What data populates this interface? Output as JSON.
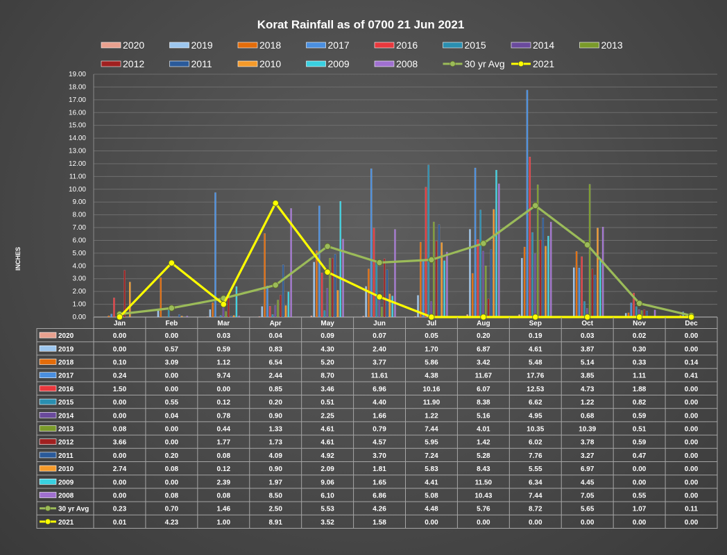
{
  "chart_data": {
    "type": "bar",
    "title": "Korat Rainfall as of 0700 21 Jun 2021",
    "ylabel": "INCHES",
    "ylim": [
      0,
      19
    ],
    "ytick_step": 1,
    "yticks": [
      "0.00",
      "1.00",
      "2.00",
      "3.00",
      "4.00",
      "5.00",
      "6.00",
      "7.00",
      "8.00",
      "9.00",
      "10.00",
      "11.00",
      "12.00",
      "13.00",
      "14.00",
      "15.00",
      "16.00",
      "17.00",
      "18.00",
      "19.00"
    ],
    "grid": true,
    "legend_position": "top",
    "categories": [
      "Jan",
      "Feb",
      "Mar",
      "Apr",
      "May",
      "Jun",
      "Jul",
      "Aug",
      "Sep",
      "Oct",
      "Nov",
      "Dec"
    ],
    "series": [
      {
        "name": "2020",
        "kind": "bar",
        "color": "#e8a08e",
        "values": [
          0.0,
          0.0,
          0.03,
          0.04,
          0.09,
          0.07,
          0.05,
          0.2,
          0.19,
          0.03,
          0.02,
          0.0
        ],
        "labels": [
          "0.00",
          "0.00",
          "0.03",
          "0.04",
          "0.09",
          "0.07",
          "0.05",
          "0.20",
          "0.19",
          "0.03",
          "0.02",
          "0.00"
        ]
      },
      {
        "name": "2019",
        "kind": "bar",
        "color": "#9cc6ee",
        "values": [
          0.0,
          0.57,
          0.59,
          0.83,
          4.3,
          2.4,
          1.7,
          6.87,
          4.61,
          3.87,
          0.3,
          0.0
        ],
        "labels": [
          "0.00",
          "0.57",
          "0.59",
          "0.83",
          "4.30",
          "2.40",
          "1.70",
          "6.87",
          "4.61",
          "3.87",
          "0.30",
          "0.00"
        ]
      },
      {
        "name": "2018",
        "kind": "bar",
        "color": "#e36c0a",
        "values": [
          0.1,
          3.09,
          1.12,
          6.54,
          5.2,
          3.77,
          5.86,
          3.42,
          5.48,
          5.14,
          0.33,
          0.14
        ],
        "labels": [
          "0.10",
          "3.09",
          "1.12",
          "6.54",
          "5.20",
          "3.77",
          "5.86",
          "3.42",
          "5.48",
          "5.14",
          "0.33",
          "0.14"
        ]
      },
      {
        "name": "2017",
        "kind": "bar",
        "color": "#4a8fe0",
        "values": [
          0.24,
          0.0,
          9.74,
          2.44,
          8.7,
          11.61,
          4.38,
          11.67,
          17.76,
          3.85,
          1.11,
          0.41
        ],
        "labels": [
          "0.24",
          "0.00",
          "9.74",
          "2.44",
          "8.70",
          "11.61",
          "4.38",
          "11.67",
          "17.76",
          "3.85",
          "1.11",
          "0.41"
        ]
      },
      {
        "name": "2016",
        "kind": "bar",
        "color": "#e8383d",
        "values": [
          1.5,
          0.0,
          0.0,
          0.85,
          3.46,
          6.96,
          10.16,
          6.07,
          12.53,
          4.73,
          1.88,
          0.0
        ],
        "labels": [
          "1.50",
          "0.00",
          "0.00",
          "0.85",
          "3.46",
          "6.96",
          "10.16",
          "6.07",
          "12.53",
          "4.73",
          "1.88",
          "0.00"
        ]
      },
      {
        "name": "2015",
        "kind": "bar",
        "color": "#2a8fb0",
        "values": [
          0.0,
          0.55,
          0.12,
          0.2,
          0.51,
          4.4,
          11.9,
          8.38,
          6.62,
          1.22,
          0.82,
          0.0
        ],
        "labels": [
          "0.00",
          "0.55",
          "0.12",
          "0.20",
          "0.51",
          "4.40",
          "11.90",
          "8.38",
          "6.62",
          "1.22",
          "0.82",
          "0.00"
        ]
      },
      {
        "name": "2014",
        "kind": "bar",
        "color": "#6a4a9c",
        "values": [
          0.0,
          0.04,
          0.78,
          0.9,
          2.25,
          1.66,
          1.22,
          5.16,
          4.95,
          0.68,
          0.59,
          0.0
        ],
        "labels": [
          "0.00",
          "0.04",
          "0.78",
          "0.90",
          "2.25",
          "1.66",
          "1.22",
          "5.16",
          "4.95",
          "0.68",
          "0.59",
          "0.00"
        ]
      },
      {
        "name": "2013",
        "kind": "bar",
        "color": "#7a9a2a",
        "values": [
          0.08,
          0.0,
          0.44,
          1.33,
          4.61,
          0.79,
          7.44,
          4.01,
          10.35,
          10.39,
          0.51,
          0.0
        ],
        "labels": [
          "0.08",
          "0.00",
          "0.44",
          "1.33",
          "4.61",
          "0.79",
          "7.44",
          "4.01",
          "10.35",
          "10.39",
          "0.51",
          "0.00"
        ]
      },
      {
        "name": "2012",
        "kind": "bar",
        "color": "#a02020",
        "values": [
          3.66,
          0.0,
          1.77,
          1.73,
          4.61,
          4.57,
          5.95,
          1.42,
          6.02,
          3.78,
          0.59,
          0.0
        ],
        "labels": [
          "3.66",
          "0.00",
          "1.77",
          "1.73",
          "4.61",
          "4.57",
          "5.95",
          "1.42",
          "6.02",
          "3.78",
          "0.59",
          "0.00"
        ]
      },
      {
        "name": "2011",
        "kind": "bar",
        "color": "#2a5a9a",
        "values": [
          0.0,
          0.2,
          0.08,
          4.09,
          4.92,
          3.7,
          7.24,
          5.28,
          7.76,
          3.27,
          0.47,
          0.0
        ],
        "labels": [
          "0.00",
          "0.20",
          "0.08",
          "4.09",
          "4.92",
          "3.70",
          "7.24",
          "5.28",
          "7.76",
          "3.27",
          "0.47",
          "0.00"
        ]
      },
      {
        "name": "2010",
        "kind": "bar",
        "color": "#f59a2a",
        "values": [
          2.74,
          0.08,
          0.12,
          0.9,
          2.09,
          1.81,
          5.83,
          8.43,
          5.55,
          6.97,
          0.0,
          0.0
        ],
        "labels": [
          "2.74",
          "0.08",
          "0.12",
          "0.90",
          "2.09",
          "1.81",
          "5.83",
          "8.43",
          "5.55",
          "6.97",
          "0.00",
          "0.00"
        ]
      },
      {
        "name": "2009",
        "kind": "bar",
        "color": "#3ad0e0",
        "values": [
          0.0,
          0.0,
          2.39,
          1.97,
          9.06,
          1.65,
          4.41,
          11.5,
          6.34,
          4.45,
          0.0,
          0.0
        ],
        "labels": [
          "0.00",
          "0.00",
          "2.39",
          "1.97",
          "9.06",
          "1.65",
          "4.41",
          "11.50",
          "6.34",
          "4.45",
          "0.00",
          "0.00"
        ]
      },
      {
        "name": "2008",
        "kind": "bar",
        "color": "#a070d0",
        "values": [
          0.0,
          0.08,
          0.08,
          8.5,
          6.1,
          6.86,
          5.08,
          10.43,
          7.44,
          7.05,
          0.55,
          0.0
        ],
        "labels": [
          "0.00",
          "0.08",
          "0.08",
          "8.50",
          "6.10",
          "6.86",
          "5.08",
          "10.43",
          "7.44",
          "7.05",
          "0.55",
          "0.00"
        ]
      },
      {
        "name": "30 yr Avg",
        "kind": "line",
        "color": "#9bbb59",
        "values": [
          0.23,
          0.7,
          1.46,
          2.5,
          5.53,
          4.26,
          4.48,
          5.76,
          8.72,
          5.65,
          1.07,
          0.11
        ],
        "labels": [
          "0.23",
          "0.70",
          "1.46",
          "2.50",
          "5.53",
          "4.26",
          "4.48",
          "5.76",
          "8.72",
          "5.65",
          "1.07",
          "0.11"
        ]
      },
      {
        "name": "2021",
        "kind": "line",
        "color": "#ffff00",
        "values": [
          0.01,
          4.23,
          1.0,
          8.91,
          3.52,
          1.58,
          0.0,
          0.0,
          0.0,
          0.0,
          0.0,
          0.0
        ],
        "labels": [
          "0.01",
          "4.23",
          "1.00",
          "8.91",
          "3.52",
          "1.58",
          "0.00",
          "0.00",
          "0.00",
          "0.00",
          "0.00",
          "0.00"
        ]
      }
    ]
  }
}
